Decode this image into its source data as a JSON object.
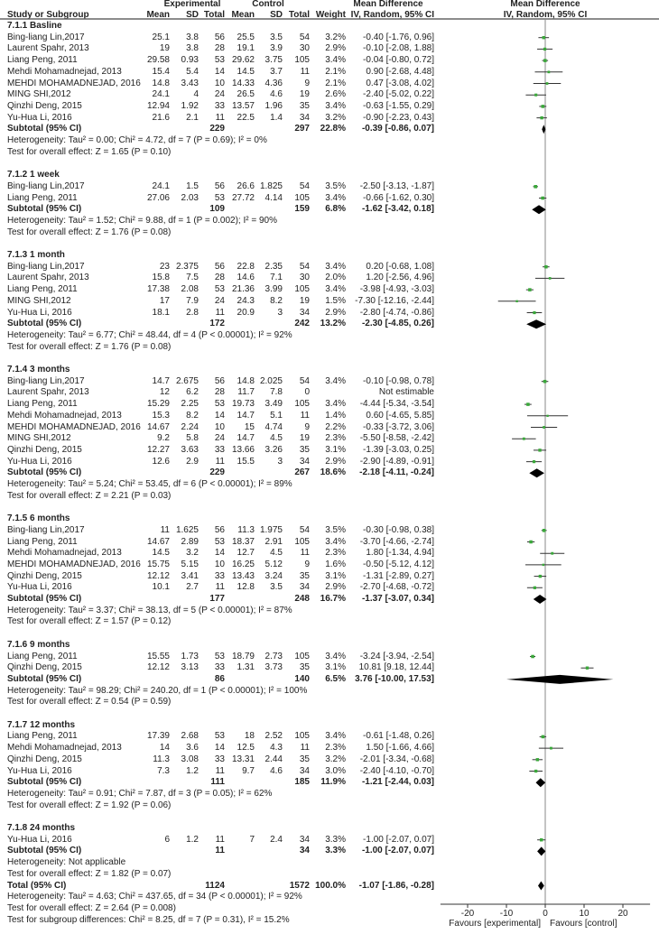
{
  "headers": {
    "experimental": "Experimental",
    "control": "Control",
    "md_title": "Mean Difference",
    "study": "Study or Subgroup",
    "mean": "Mean",
    "sd": "SD",
    "total": "Total",
    "weight": "Weight",
    "method": "IV, Random, 95% CI"
  },
  "chart_data": {
    "type": "forest",
    "x_axis": {
      "ticks": [
        "-20",
        "-10",
        "0",
        "10",
        "20"
      ],
      "xlim": [
        -27,
        27
      ],
      "favours_left": "Favours [experimental]",
      "favours_right": "Favours [control]"
    },
    "colors": {
      "study_marker": "#3aa83a",
      "ci_line": "#333333",
      "diamond": "#000000",
      "null_line": "#888888"
    },
    "subtotal_label": "Subtotal (95% CI)",
    "subgroups": [
      {
        "label": "7.1.1 Basline",
        "studies": [
          [
            "Bing-liang Lin,2017",
            "25.1",
            "3.8",
            "56",
            "25.5",
            "3.5",
            "54",
            "3.2%",
            "-0.40 [-1.76, 0.96]"
          ],
          [
            "Laurent Spahr, 2013",
            "19",
            "3.8",
            "28",
            "19.1",
            "3.9",
            "30",
            "2.9%",
            "-0.10 [-2.08, 1.88]"
          ],
          [
            "Liang Peng, 2011",
            "29.58",
            "0.93",
            "53",
            "29.62",
            "3.75",
            "105",
            "3.4%",
            "-0.04 [-0.80, 0.72]"
          ],
          [
            "Mehdi Mohamadnejad, 2013",
            "15.4",
            "5.4",
            "14",
            "14.5",
            "3.7",
            "11",
            "2.1%",
            "0.90 [-2.68, 4.48]"
          ],
          [
            "MEHDI MOHAMADNEJAD, 2016",
            "14.8",
            "3.43",
            "10",
            "14.33",
            "4.36",
            "9",
            "2.1%",
            "0.47 [-3.08, 4.02]"
          ],
          [
            "MING SHI,2012",
            "24.1",
            "4",
            "24",
            "26.5",
            "4.6",
            "19",
            "2.6%",
            "-2.40 [-5.02, 0.22]"
          ],
          [
            "Qinzhi Deng, 2015",
            "12.94",
            "1.92",
            "33",
            "13.57",
            "1.96",
            "35",
            "3.4%",
            "-0.63 [-1.55, 0.29]"
          ],
          [
            "Yu-Hua Li, 2016",
            "21.6",
            "2.1",
            "11",
            "22.5",
            "1.4",
            "34",
            "3.2%",
            "-0.90 [-2.23, 0.43]"
          ]
        ],
        "subtotal": [
          "229",
          "297",
          "22.8%",
          "-0.39 [-0.86, 0.07]"
        ],
        "heterogeneity": "Heterogeneity: Tau² = 0.00; Chi² = 4.72, df = 7 (P = 0.69); I² = 0%",
        "overall": "Test for overall effect: Z = 1.65 (P = 0.10)"
      },
      {
        "label": "7.1.2 1 week",
        "studies": [
          [
            "Bing-liang Lin,2017",
            "24.1",
            "1.5",
            "56",
            "26.6",
            "1.825",
            "54",
            "3.5%",
            "-2.50 [-3.13, -1.87]"
          ],
          [
            "Liang Peng, 2011",
            "27.06",
            "2.03",
            "53",
            "27.72",
            "4.14",
            "105",
            "3.4%",
            "-0.66 [-1.62, 0.30]"
          ]
        ],
        "subtotal": [
          "109",
          "159",
          "6.8%",
          "-1.62 [-3.42, 0.18]"
        ],
        "heterogeneity": "Heterogeneity: Tau² = 1.52; Chi² = 9.88, df = 1 (P = 0.002); I² = 90%",
        "overall": "Test for overall effect: Z = 1.76 (P = 0.08)"
      },
      {
        "label": "7.1.3 1 month",
        "studies": [
          [
            "Bing-liang Lin,2017",
            "23",
            "2.375",
            "56",
            "22.8",
            "2.35",
            "54",
            "3.4%",
            "0.20 [-0.68, 1.08]"
          ],
          [
            "Laurent Spahr, 2013",
            "15.8",
            "7.5",
            "28",
            "14.6",
            "7.1",
            "30",
            "2.0%",
            "1.20 [-2.56, 4.96]"
          ],
          [
            "Liang Peng, 2011",
            "17.38",
            "2.08",
            "53",
            "21.36",
            "3.99",
            "105",
            "3.4%",
            "-3.98 [-4.93, -3.03]"
          ],
          [
            "MING SHI,2012",
            "17",
            "7.9",
            "24",
            "24.3",
            "8.2",
            "19",
            "1.5%",
            "-7.30 [-12.16, -2.44]"
          ],
          [
            "Yu-Hua Li, 2016",
            "18.1",
            "2.8",
            "11",
            "20.9",
            "3",
            "34",
            "2.9%",
            "-2.80 [-4.74, -0.86]"
          ]
        ],
        "subtotal": [
          "172",
          "242",
          "13.2%",
          "-2.30 [-4.85, 0.26]"
        ],
        "heterogeneity": "Heterogeneity: Tau² = 6.77; Chi² = 48.44, df = 4 (P < 0.00001); I² = 92%",
        "overall": "Test for overall effect: Z = 1.76 (P = 0.08)"
      },
      {
        "label": "7.1.4 3 months",
        "studies": [
          [
            "Bing-liang Lin,2017",
            "14.7",
            "2.675",
            "56",
            "14.8",
            "2.025",
            "54",
            "3.4%",
            "-0.10 [-0.98, 0.78]"
          ],
          [
            "Laurent Spahr, 2013",
            "12",
            "6.2",
            "28",
            "11.7",
            "7.8",
            "0",
            "",
            "Not estimable"
          ],
          [
            "Liang Peng, 2011",
            "15.29",
            "2.25",
            "53",
            "19.73",
            "3.49",
            "105",
            "3.4%",
            "-4.44 [-5.34, -3.54]"
          ],
          [
            "Mehdi Mohamadnejad, 2013",
            "15.3",
            "8.2",
            "14",
            "14.7",
            "5.1",
            "11",
            "1.4%",
            "0.60 [-4.65, 5.85]"
          ],
          [
            "MEHDI MOHAMADNEJAD, 2016",
            "14.67",
            "2.24",
            "10",
            "15",
            "4.74",
            "9",
            "2.2%",
            "-0.33 [-3.72, 3.06]"
          ],
          [
            "MING SHI,2012",
            "9.2",
            "5.8",
            "24",
            "14.7",
            "4.5",
            "19",
            "2.3%",
            "-5.50 [-8.58, -2.42]"
          ],
          [
            "Qinzhi Deng, 2015",
            "12.27",
            "3.63",
            "33",
            "13.66",
            "3.26",
            "35",
            "3.1%",
            "-1.39 [-3.03, 0.25]"
          ],
          [
            "Yu-Hua Li, 2016",
            "12.6",
            "2.9",
            "11",
            "15.5",
            "3",
            "34",
            "2.9%",
            "-2.90 [-4.89, -0.91]"
          ]
        ],
        "subtotal": [
          "229",
          "267",
          "18.6%",
          "-2.18 [-4.11, -0.24]"
        ],
        "heterogeneity": "Heterogeneity: Tau² = 5.24; Chi² = 53.45, df = 6 (P < 0.00001); I² = 89%",
        "overall": "Test for overall effect: Z = 2.21 (P = 0.03)"
      },
      {
        "label": "7.1.5 6 months",
        "studies": [
          [
            "Bing-liang Lin,2017",
            "11",
            "1.625",
            "56",
            "11.3",
            "1.975",
            "54",
            "3.5%",
            "-0.30 [-0.98, 0.38]"
          ],
          [
            "Liang Peng, 2011",
            "14.67",
            "2.89",
            "53",
            "18.37",
            "2.91",
            "105",
            "3.4%",
            "-3.70 [-4.66, -2.74]"
          ],
          [
            "Mehdi Mohamadnejad, 2013",
            "14.5",
            "3.2",
            "14",
            "12.7",
            "4.5",
            "11",
            "2.3%",
            "1.80 [-1.34, 4.94]"
          ],
          [
            "MEHDI MOHAMADNEJAD, 2016",
            "15.75",
            "5.15",
            "10",
            "16.25",
            "5.12",
            "9",
            "1.6%",
            "-0.50 [-5.12, 4.12]"
          ],
          [
            "Qinzhi Deng, 2015",
            "12.12",
            "3.41",
            "33",
            "13.43",
            "3.24",
            "35",
            "3.1%",
            "-1.31 [-2.89, 0.27]"
          ],
          [
            "Yu-Hua Li, 2016",
            "10.1",
            "2.7",
            "11",
            "12.8",
            "3.5",
            "34",
            "2.9%",
            "-2.70 [-4.68, -0.72]"
          ]
        ],
        "subtotal": [
          "177",
          "248",
          "16.7%",
          "-1.37 [-3.07, 0.34]"
        ],
        "heterogeneity": "Heterogeneity: Tau² = 3.37; Chi² = 38.13, df = 5 (P < 0.00001); I² = 87%",
        "overall": "Test for overall effect: Z = 1.57 (P = 0.12)"
      },
      {
        "label": "7.1.6 9 months",
        "studies": [
          [
            "Liang Peng, 2011",
            "15.55",
            "1.73",
            "53",
            "18.79",
            "2.73",
            "105",
            "3.4%",
            "-3.24 [-3.94, -2.54]"
          ],
          [
            "Qinzhi Deng, 2015",
            "12.12",
            "3.13",
            "33",
            "1.31",
            "3.73",
            "35",
            "3.1%",
            "10.81 [9.18, 12.44]"
          ]
        ],
        "subtotal": [
          "86",
          "140",
          "6.5%",
          "3.76 [-10.00, 17.53]"
        ],
        "heterogeneity": "Heterogeneity: Tau² = 98.29; Chi² = 240.20, df = 1 (P < 0.00001); I² = 100%",
        "overall": "Test for overall effect: Z = 0.54 (P = 0.59)"
      },
      {
        "label": "7.1.7 12 months",
        "studies": [
          [
            "Liang Peng, 2011",
            "17.39",
            "2.68",
            "53",
            "18",
            "2.52",
            "105",
            "3.4%",
            "-0.61 [-1.48, 0.26]"
          ],
          [
            "Mehdi Mohamadnejad, 2013",
            "14",
            "3.6",
            "14",
            "12.5",
            "4.3",
            "11",
            "2.3%",
            "1.50 [-1.66, 4.66]"
          ],
          [
            "Qinzhi Deng, 2015",
            "11.3",
            "3.08",
            "33",
            "13.31",
            "2.44",
            "35",
            "3.2%",
            "-2.01 [-3.34, -0.68]"
          ],
          [
            "Yu-Hua Li, 2016",
            "7.3",
            "1.2",
            "11",
            "9.7",
            "4.6",
            "34",
            "3.0%",
            "-2.40 [-4.10, -0.70]"
          ]
        ],
        "subtotal": [
          "111",
          "185",
          "11.9%",
          "-1.21 [-2.44, 0.03]"
        ],
        "heterogeneity": "Heterogeneity: Tau² = 0.91; Chi² = 7.87, df = 3 (P = 0.05); I² = 62%",
        "overall": "Test for overall effect: Z = 1.92 (P = 0.06)"
      },
      {
        "label": "7.1.8 24 months",
        "studies": [
          [
            "Yu-Hua Li, 2016",
            "6",
            "1.2",
            "11",
            "7",
            "2.4",
            "34",
            "3.3%",
            "-1.00 [-2.07, 0.07]"
          ]
        ],
        "subtotal": [
          "11",
          "34",
          "3.3%",
          "-1.00 [-2.07, 0.07]"
        ],
        "heterogeneity": "Heterogeneity: Not applicable",
        "overall": "Test for overall effect: Z = 1.82 (P = 0.07)"
      }
    ],
    "total": {
      "label": "Total (95% CI)",
      "values": [
        "1124",
        "1572",
        "100.0%",
        "-1.07 [-1.86, -0.28]"
      ],
      "heterogeneity": "Heterogeneity: Tau² = 4.63; Chi² = 437.65, df = 34 (P < 0.00001); I² = 92%",
      "overall": "Test for overall effect: Z = 2.64 (P = 0.008)",
      "subgroup_differences": "Test for subgroup differences: Chi² = 8.25, df = 7 (P = 0.31), I² = 15.2%"
    }
  }
}
